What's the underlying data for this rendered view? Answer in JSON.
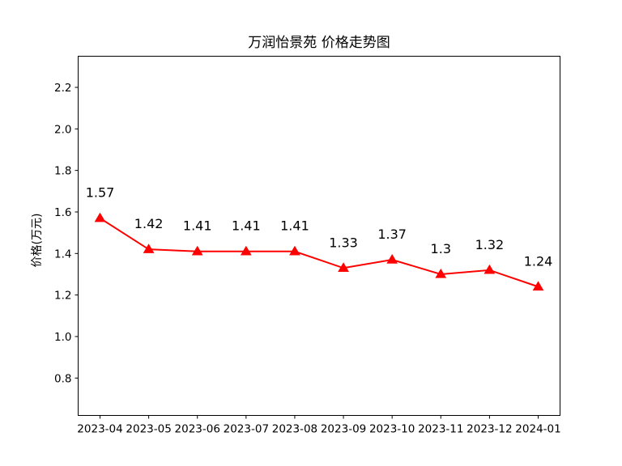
{
  "chart_data": {
    "type": "line",
    "title": "万润怡景苑 价格走势图",
    "xlabel": "",
    "ylabel": "价格(万元)",
    "categories": [
      "2023-04",
      "2023-05",
      "2023-06",
      "2023-07",
      "2023-08",
      "2023-09",
      "2023-10",
      "2023-11",
      "2023-12",
      "2024-01"
    ],
    "series": [
      {
        "values": [
          1.57,
          1.42,
          1.41,
          1.41,
          1.41,
          1.33,
          1.37,
          1.3,
          1.32,
          1.24
        ],
        "color": "#ff0000",
        "marker": "triangle-up"
      }
    ],
    "data_labels": [
      "1.57",
      "1.42",
      "1.41",
      "1.41",
      "1.41",
      "1.33",
      "1.37",
      "1.3",
      "1.32",
      "1.24"
    ],
    "yticks": [
      0.8,
      1.0,
      1.2,
      1.4,
      1.6,
      1.8,
      2.0,
      2.2
    ],
    "ytick_labels": [
      "0.8",
      "1.0",
      "1.2",
      "1.4",
      "1.6",
      "1.8",
      "2.0",
      "2.2"
    ],
    "ylim": [
      0.62,
      2.35
    ],
    "grid": false,
    "legend": false
  }
}
